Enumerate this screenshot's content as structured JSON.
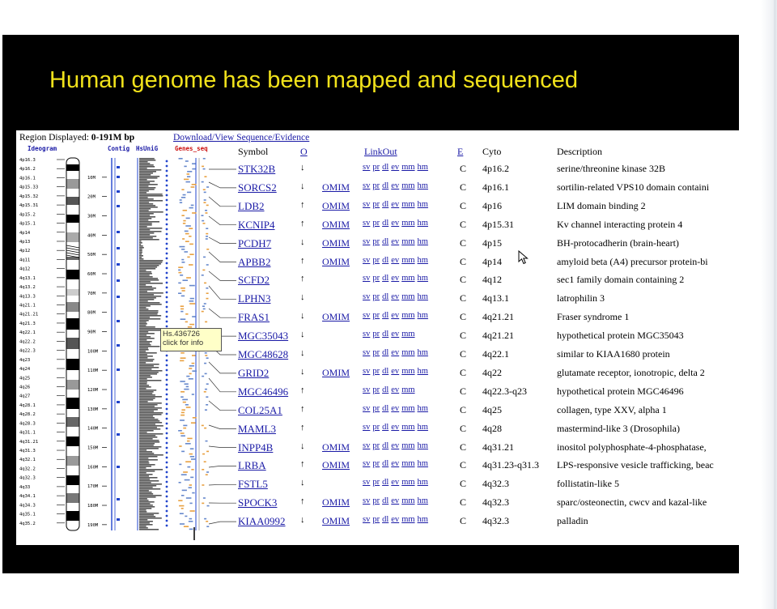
{
  "slide": {
    "title": "Human genome has been mapped and sequenced"
  },
  "viewer": {
    "region_label": "Region Displayed:",
    "region_value": "0-191M bp",
    "download_link": "Download/View Sequence/Evidence",
    "tracks": {
      "ideogram": "Ideogram",
      "contig": "Contig",
      "hsunig": "HsUniG",
      "genes_seq": "Genes_seq"
    },
    "columns": {
      "symbol": "Symbol",
      "o": "O",
      "linkout": "LinkOut",
      "e": "E",
      "cyto": "Cyto",
      "description": "Description"
    },
    "tooltip": {
      "line1": "Hs.436726",
      "line2": "click for info"
    },
    "band_labels": [
      "4p16.3",
      "4p16.2",
      "4p16.1",
      "4p15.33",
      "4p15.32",
      "4p15.31",
      "4p15.2",
      "4p15.1",
      "4p14",
      "4p13",
      "4p12",
      "4q11",
      "4q12",
      "4q13.1",
      "4q13.2",
      "4q13.3",
      "4q21.1",
      "4q21.21",
      "4q21.3",
      "4q22.1",
      "4q22.2",
      "4q22.3",
      "4q23",
      "4q24",
      "4q25",
      "4q26",
      "4q27",
      "4q28.1",
      "4q28.2",
      "4q28.3",
      "4q31.1",
      "4q31.21",
      "4q31.3",
      "4q32.1",
      "4q32.2",
      "4q32.3",
      "4q33",
      "4q34.1",
      "4q34.3",
      "4q35.1",
      "4q35.2"
    ],
    "contig_ticks": [
      "10M",
      "20M",
      "30M",
      "40M",
      "50M",
      "60M",
      "70M",
      "80M",
      "90M",
      "100M",
      "110M",
      "120M",
      "130M",
      "140M",
      "150M",
      "160M",
      "170M",
      "180M",
      "190M"
    ],
    "genes": [
      {
        "symbol": "STK32B",
        "arrow": "↓",
        "omim": "",
        "links": [
          "sv",
          "pr",
          "dl",
          "ev",
          "mm",
          "hm"
        ],
        "e": "C",
        "cyto": "4p16.2",
        "desc": "serine/threonine kinase 32B"
      },
      {
        "symbol": "SORCS2",
        "arrow": "↓",
        "omim": "OMIM",
        "links": [
          "sv",
          "pr",
          "dl",
          "ev",
          "mm",
          "hm"
        ],
        "e": "C",
        "cyto": "4p16.1",
        "desc": "sortilin-related VPS10 domain containi"
      },
      {
        "symbol": "LDB2",
        "arrow": "↑",
        "omim": "OMIM",
        "links": [
          "sv",
          "pr",
          "dl",
          "ev",
          "mm",
          "hm"
        ],
        "e": "C",
        "cyto": "4p16",
        "desc": "LIM domain binding 2"
      },
      {
        "symbol": "KCNIP4",
        "arrow": "↑",
        "omim": "OMIM",
        "links": [
          "sv",
          "pr",
          "dl",
          "ev",
          "mm",
          "hm"
        ],
        "e": "C",
        "cyto": "4p15.31",
        "desc": "Kv channel interacting protein 4"
      },
      {
        "symbol": "PCDH7",
        "arrow": "↓",
        "omim": "OMIM",
        "links": [
          "sv",
          "pr",
          "dl",
          "ev",
          "mm",
          "hm"
        ],
        "e": "C",
        "cyto": "4p15",
        "desc": "BH-protocadherin (brain-heart)"
      },
      {
        "symbol": "APBB2",
        "arrow": "↑",
        "omim": "OMIM",
        "links": [
          "sv",
          "pr",
          "dl",
          "ev",
          "mm",
          "hm"
        ],
        "e": "C",
        "cyto": "4p14",
        "desc": "amyloid beta (A4) precursor protein-bi"
      },
      {
        "symbol": "SCFD2",
        "arrow": "↑",
        "omim": "",
        "links": [
          "sv",
          "pr",
          "dl",
          "ev",
          "mm",
          "hm"
        ],
        "e": "C",
        "cyto": "4q12",
        "desc": "sec1 family domain containing 2"
      },
      {
        "symbol": "LPHN3",
        "arrow": "↓",
        "omim": "",
        "links": [
          "sv",
          "pr",
          "dl",
          "ev",
          "mm",
          "hm"
        ],
        "e": "C",
        "cyto": "4q13.1",
        "desc": "latrophilin 3"
      },
      {
        "symbol": "FRAS1",
        "arrow": "↓",
        "omim": "OMIM",
        "links": [
          "sv",
          "pr",
          "dl",
          "ev",
          "mm",
          "hm"
        ],
        "e": "C",
        "cyto": "4q21.21",
        "desc": "Fraser syndrome 1"
      },
      {
        "symbol": "MGC35043",
        "arrow": "↓",
        "omim": "",
        "links": [
          "sv",
          "pr",
          "dl",
          "ev",
          "mm"
        ],
        "e": "C",
        "cyto": "4q21.21",
        "desc": "hypothetical protein MGC35043"
      },
      {
        "symbol": "MGC48628",
        "arrow": "↓",
        "omim": "",
        "links": [
          "sv",
          "pr",
          "dl",
          "ev",
          "mm",
          "hm"
        ],
        "e": "C",
        "cyto": "4q22.1",
        "desc": "similar to KIAA1680 protein"
      },
      {
        "symbol": "GRID2",
        "arrow": "↓",
        "omim": "OMIM",
        "links": [
          "sv",
          "pr",
          "dl",
          "ev",
          "mm",
          "hm"
        ],
        "e": "C",
        "cyto": "4q22",
        "desc": "glutamate receptor, ionotropic, delta 2"
      },
      {
        "symbol": "MGC46496",
        "arrow": "↑",
        "omim": "",
        "links": [
          "sv",
          "pr",
          "dl",
          "ev",
          "mm"
        ],
        "e": "C",
        "cyto": "4q22.3-q23",
        "desc": "hypothetical protein MGC46496"
      },
      {
        "symbol": "COL25A1",
        "arrow": "↑",
        "omim": "",
        "links": [
          "sv",
          "pr",
          "dl",
          "ev",
          "mm",
          "hm"
        ],
        "e": "C",
        "cyto": "4q25",
        "desc": "collagen, type XXV, alpha 1"
      },
      {
        "symbol": "MAML3",
        "arrow": "↑",
        "omim": "",
        "links": [
          "sv",
          "pr",
          "dl",
          "ev",
          "mm",
          "hm"
        ],
        "e": "C",
        "cyto": "4q28",
        "desc": "mastermind-like 3 (Drosophila)"
      },
      {
        "symbol": "INPP4B",
        "arrow": "↓",
        "omim": "OMIM",
        "links": [
          "sv",
          "pr",
          "dl",
          "ev",
          "mm",
          "hm"
        ],
        "e": "C",
        "cyto": "4q31.21",
        "desc": "inositol polyphosphate-4-phosphatase,"
      },
      {
        "symbol": "LRBA",
        "arrow": "↑",
        "omim": "OMIM",
        "links": [
          "sv",
          "pr",
          "dl",
          "ev",
          "mm",
          "hm"
        ],
        "e": "C",
        "cyto": "4q31.23-q31.3",
        "desc": "LPS-responsive vesicle trafficking, beac"
      },
      {
        "symbol": "FSTL5",
        "arrow": "↓",
        "omim": "",
        "links": [
          "sv",
          "pr",
          "dl",
          "ev",
          "mm",
          "hm"
        ],
        "e": "C",
        "cyto": "4q32.3",
        "desc": "follistatin-like 5"
      },
      {
        "symbol": "SPOCK3",
        "arrow": "↑",
        "omim": "OMIM",
        "links": [
          "sv",
          "pr",
          "dl",
          "ev",
          "mm",
          "hm"
        ],
        "e": "C",
        "cyto": "4q32.3",
        "desc": "sparc/osteonectin, cwcv and kazal-like"
      },
      {
        "symbol": "KIAA0992",
        "arrow": "↓",
        "omim": "OMIM",
        "links": [
          "sv",
          "pr",
          "dl",
          "ev",
          "mm",
          "hm"
        ],
        "e": "C",
        "cyto": "4q32.3",
        "desc": "palladin"
      }
    ]
  },
  "colors": {
    "slide_bg": "#000000",
    "title": "#f1e21b",
    "link": "#1a1aa6",
    "track_blue": "#2244cc",
    "tooltip_bg": "#ffffc8"
  }
}
